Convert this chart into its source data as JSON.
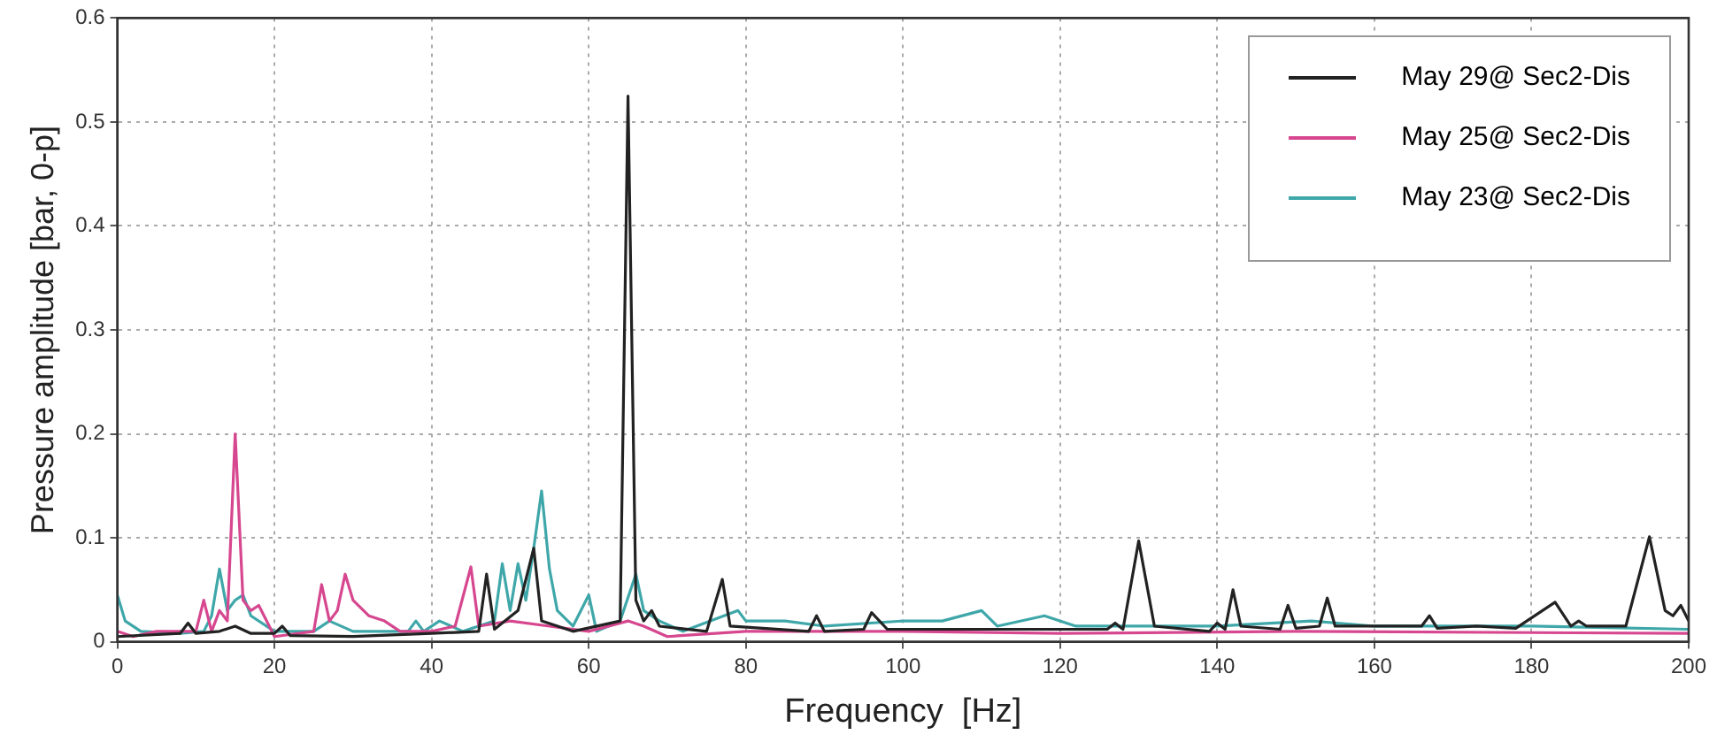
{
  "chart_data": {
    "type": "line",
    "xlabel": "Frequency  [Hz]",
    "ylabel": "Pressure amplitude [bar, 0-p]",
    "xlim": [
      0,
      200
    ],
    "xticks": [
      0,
      20,
      40,
      60,
      80,
      100,
      120,
      140,
      160,
      180,
      200
    ],
    "ylim": [
      0,
      0.6
    ],
    "yticks": [
      0,
      0.1,
      0.2,
      0.3,
      0.4,
      0.5,
      0.6
    ],
    "grid": true,
    "legend": "top right",
    "marker": "none",
    "line_style": "solid",
    "series": [
      {
        "name": "May 29@ Sec2-Dis",
        "color": "#222222",
        "x": [
          0,
          8,
          9,
          10,
          13,
          15,
          17,
          20,
          21,
          22,
          30,
          40,
          46,
          47,
          48,
          51,
          53,
          54,
          58,
          64,
          65,
          66,
          67,
          68,
          69,
          75,
          77,
          78,
          88,
          89,
          90,
          95,
          96,
          98,
          110,
          126,
          127,
          128,
          130,
          132,
          139,
          140,
          141,
          142,
          143,
          148,
          149,
          150,
          153,
          154,
          155,
          160,
          166,
          167,
          168,
          173,
          178,
          183,
          185,
          186,
          187,
          192,
          195,
          197,
          198,
          199,
          200
        ],
        "values": [
          0.005,
          0.008,
          0.018,
          0.008,
          0.01,
          0.015,
          0.008,
          0.008,
          0.015,
          0.006,
          0.005,
          0.008,
          0.01,
          0.065,
          0.012,
          0.03,
          0.09,
          0.02,
          0.01,
          0.02,
          0.525,
          0.04,
          0.02,
          0.03,
          0.015,
          0.01,
          0.06,
          0.015,
          0.01,
          0.025,
          0.01,
          0.012,
          0.028,
          0.012,
          0.012,
          0.012,
          0.018,
          0.012,
          0.097,
          0.015,
          0.01,
          0.018,
          0.012,
          0.05,
          0.015,
          0.012,
          0.035,
          0.013,
          0.015,
          0.042,
          0.015,
          0.015,
          0.015,
          0.025,
          0.013,
          0.015,
          0.013,
          0.038,
          0.015,
          0.02,
          0.015,
          0.015,
          0.101,
          0.03,
          0.025,
          0.035,
          0.02
        ]
      },
      {
        "name": "May 25@ Sec2-Dis",
        "color": "#d6478f",
        "x": [
          0,
          2,
          5,
          10,
          11,
          12,
          13,
          14,
          15,
          16,
          17,
          18,
          19,
          20,
          25,
          26,
          27,
          28,
          29,
          30,
          32,
          34,
          36,
          40,
          43,
          45,
          46,
          50,
          55,
          60,
          65,
          67,
          70,
          80,
          100,
          120,
          150,
          200
        ],
        "values": [
          0.01,
          0.005,
          0.01,
          0.01,
          0.04,
          0.01,
          0.03,
          0.02,
          0.2,
          0.04,
          0.03,
          0.035,
          0.02,
          0.005,
          0.01,
          0.055,
          0.02,
          0.03,
          0.065,
          0.04,
          0.025,
          0.02,
          0.01,
          0.01,
          0.015,
          0.072,
          0.015,
          0.02,
          0.015,
          0.01,
          0.02,
          0.015,
          0.005,
          0.01,
          0.01,
          0.008,
          0.01,
          0.008
        ]
      },
      {
        "name": "May 23@ Sec2-Dis",
        "color": "#3fa7a9",
        "x": [
          0,
          1,
          3,
          8,
          11,
          12,
          13,
          14,
          15,
          16,
          17,
          20,
          25,
          27,
          30,
          37,
          38,
          39,
          41,
          44,
          48,
          49,
          50,
          51,
          52,
          53,
          54,
          55,
          56,
          58,
          60,
          61,
          64,
          66,
          67,
          69,
          72,
          79,
          80,
          85,
          90,
          100,
          105,
          110,
          112,
          118,
          122,
          130,
          140,
          152,
          160,
          180,
          200
        ],
        "values": [
          0.045,
          0.02,
          0.01,
          0.008,
          0.01,
          0.025,
          0.07,
          0.03,
          0.04,
          0.045,
          0.025,
          0.01,
          0.01,
          0.02,
          0.01,
          0.01,
          0.02,
          0.01,
          0.02,
          0.01,
          0.02,
          0.075,
          0.03,
          0.075,
          0.04,
          0.09,
          0.145,
          0.07,
          0.03,
          0.015,
          0.045,
          0.01,
          0.02,
          0.065,
          0.03,
          0.02,
          0.01,
          0.03,
          0.02,
          0.02,
          0.015,
          0.02,
          0.02,
          0.03,
          0.015,
          0.025,
          0.015,
          0.015,
          0.015,
          0.02,
          0.015,
          0.015,
          0.012
        ]
      }
    ]
  }
}
